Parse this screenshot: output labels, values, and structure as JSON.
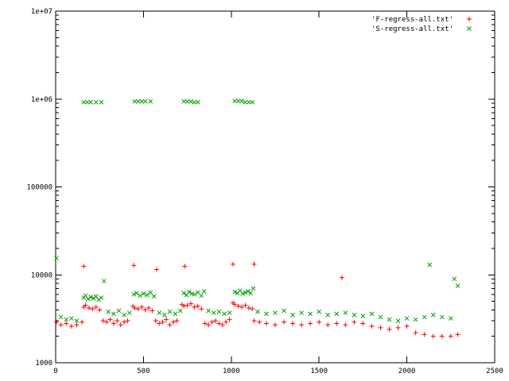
{
  "chart_data": {
    "type": "scatter",
    "title": "",
    "xlabel": "",
    "ylabel": "",
    "xlim": [
      0,
      2500
    ],
    "ylim": [
      1000,
      10000000
    ],
    "yscale": "log",
    "grid": false,
    "legend_position": "top-right",
    "x_ticks": [
      "0",
      "500",
      "1000",
      "1500",
      "2000",
      "2500"
    ],
    "y_ticks": [
      {
        "value": 1000,
        "label": "1000"
      },
      {
        "value": 10000,
        "label": "10000"
      },
      {
        "value": 100000,
        "label": "100000"
      },
      {
        "value": 1000000,
        "label": "1e+06"
      },
      {
        "value": 10000000,
        "label": "1e+07"
      }
    ],
    "series": [
      {
        "name": "'F-regress-all.txt'",
        "marker": "+",
        "color": "#ff0000",
        "x": [
          5,
          30,
          60,
          90,
          120,
          150,
          160,
          170,
          190,
          210,
          230,
          250,
          270,
          290,
          310,
          330,
          350,
          370,
          390,
          410,
          440,
          450,
          470,
          490,
          510,
          530,
          550,
          570,
          590,
          610,
          630,
          650,
          670,
          690,
          720,
          730,
          750,
          770,
          790,
          810,
          830,
          850,
          870,
          890,
          910,
          930,
          950,
          970,
          990,
          1010,
          1020,
          1040,
          1060,
          1080,
          1100,
          1120,
          1130,
          1160,
          1200,
          1250,
          1300,
          1350,
          1400,
          1450,
          1500,
          1550,
          1600,
          1650,
          1700,
          1750,
          1800,
          1850,
          1900,
          1950,
          2000,
          2050,
          2100,
          2150,
          2200,
          2250,
          2290,
          160,
          445,
          575,
          735,
          1010,
          1130,
          1630
        ],
        "y": [
          2900,
          2700,
          2800,
          2600,
          2700,
          2900,
          4300,
          4500,
          4200,
          4100,
          4300,
          4000,
          3000,
          2900,
          3100,
          2800,
          3000,
          2700,
          2900,
          3000,
          4400,
          4200,
          4100,
          4300,
          4000,
          4200,
          3900,
          3000,
          2800,
          2900,
          3100,
          2700,
          2900,
          3000,
          4600,
          4400,
          4500,
          4700,
          4300,
          4400,
          4100,
          2800,
          2700,
          2900,
          3000,
          2800,
          2700,
          2900,
          3100,
          4800,
          4600,
          4400,
          4300,
          4500,
          4200,
          4100,
          3000,
          2900,
          2800,
          2700,
          2900,
          2800,
          2700,
          2800,
          2900,
          2700,
          2800,
          2700,
          2900,
          2800,
          2600,
          2500,
          2400,
          2500,
          2600,
          2200,
          2100,
          2000,
          2000,
          2000,
          2100,
          12500,
          12800,
          11500,
          12500,
          13200,
          13200,
          9300
        ]
      },
      {
        "name": "'S-regress-all.txt'",
        "marker": "x",
        "color": "#00a000",
        "x": [
          5,
          30,
          60,
          90,
          120,
          160,
          170,
          185,
          200,
          215,
          230,
          245,
          260,
          275,
          300,
          330,
          360,
          390,
          420,
          445,
          460,
          480,
          500,
          520,
          540,
          560,
          590,
          620,
          650,
          680,
          710,
          730,
          745,
          760,
          775,
          790,
          810,
          830,
          845,
          870,
          900,
          930,
          960,
          990,
          1020,
          1035,
          1050,
          1065,
          1080,
          1095,
          1110,
          1125,
          1150,
          1200,
          1250,
          1300,
          1350,
          1400,
          1450,
          1500,
          1550,
          1600,
          1650,
          1700,
          1750,
          1800,
          1850,
          1900,
          1950,
          2000,
          2050,
          2100,
          2130,
          2150,
          2200,
          2250,
          2270,
          2290,
          160,
          180,
          200,
          230,
          260,
          450,
          470,
          490,
          510,
          540,
          730,
          750,
          770,
          790,
          810,
          1020,
          1040,
          1060,
          1080,
          1100,
          1120
        ],
        "y": [
          15500,
          3300,
          3100,
          3200,
          3000,
          5500,
          5800,
          5300,
          5600,
          5400,
          5700,
          5200,
          5500,
          8500,
          3800,
          3600,
          3900,
          3500,
          3700,
          6000,
          6200,
          5800,
          6100,
          5900,
          6300,
          5700,
          3700,
          3500,
          3800,
          3600,
          3900,
          6200,
          5900,
          6400,
          6100,
          6000,
          6300,
          5800,
          6500,
          3900,
          3700,
          3800,
          3600,
          3700,
          6400,
          6200,
          6600,
          6100,
          6300,
          6500,
          6200,
          7000,
          3800,
          3600,
          3700,
          3900,
          3500,
          3700,
          3600,
          3800,
          3500,
          3600,
          3700,
          3500,
          3400,
          3600,
          3300,
          3100,
          3000,
          3200,
          3100,
          3300,
          13000,
          3500,
          3300,
          3200,
          9000,
          7500,
          920000,
          920000,
          920000,
          920000,
          920000,
          940000,
          940000,
          940000,
          940000,
          940000,
          940000,
          940000,
          940000,
          920000,
          920000,
          950000,
          950000,
          950000,
          920000,
          920000,
          920000
        ]
      }
    ]
  }
}
